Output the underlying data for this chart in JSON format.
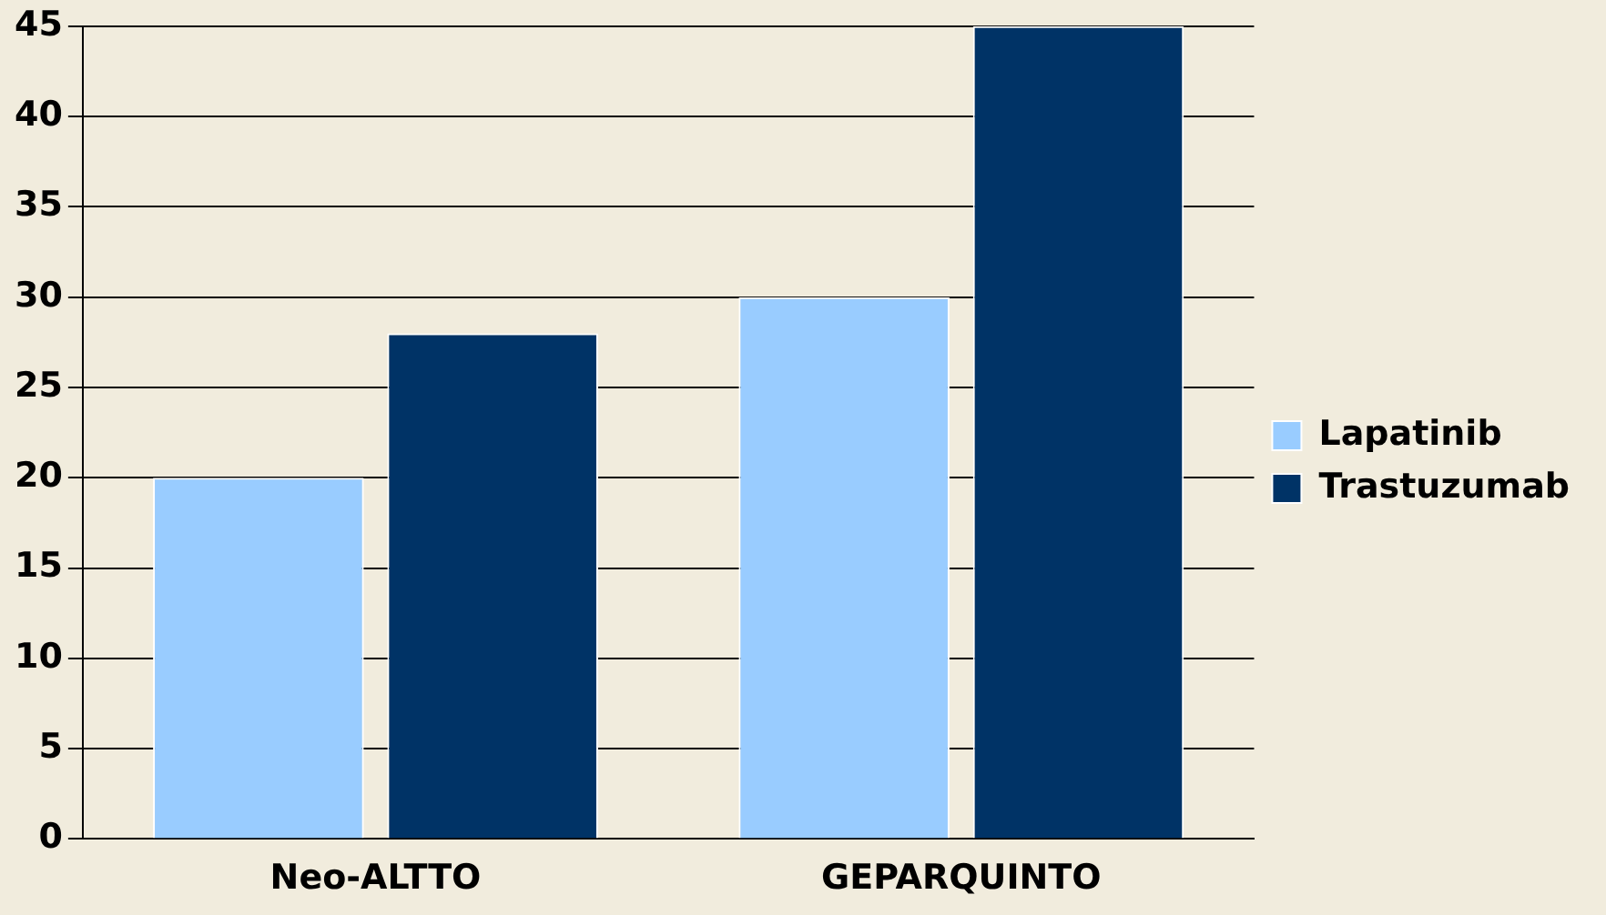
{
  "chart_data": {
    "type": "bar",
    "categories": [
      "Neo-ALTTO",
      "GEPARQUINTO"
    ],
    "series": [
      {
        "name": "Lapatinib",
        "color": "#99ccff",
        "values": [
          20,
          30
        ]
      },
      {
        "name": "Trastuzumab",
        "color": "#003366",
        "values": [
          28,
          45
        ]
      }
    ],
    "ylim": [
      0,
      45
    ],
    "yticks": [
      0,
      5,
      10,
      15,
      20,
      25,
      30,
      35,
      40,
      45
    ],
    "grid": "y",
    "legend": "right"
  }
}
